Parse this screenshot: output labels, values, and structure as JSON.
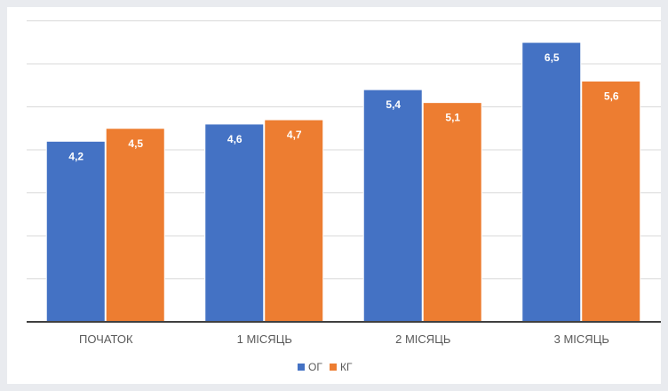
{
  "chart_data": {
    "type": "bar",
    "categories": [
      "ПОЧАТОК",
      "1 МІСЯЦЬ",
      "2 МІСЯЦЬ",
      "3 МІСЯЦЬ"
    ],
    "series": [
      {
        "name": "ОГ",
        "values": [
          4.2,
          4.6,
          5.4,
          6.5
        ],
        "labels": [
          "4,2",
          "4,6",
          "5,4",
          "6,5"
        ],
        "color": "#4472c4"
      },
      {
        "name": "КГ",
        "values": [
          4.5,
          4.7,
          5.1,
          5.6
        ],
        "labels": [
          "4,5",
          "4,7",
          "5,1",
          "5,6"
        ],
        "color": "#ed7d31"
      }
    ],
    "ylim": [
      0,
      7
    ],
    "grid": true,
    "legend_position": "bottom",
    "title": "",
    "xlabel": "",
    "ylabel": ""
  }
}
